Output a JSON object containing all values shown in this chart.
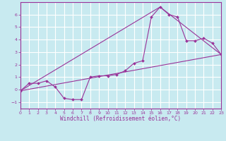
{
  "background_color": "#c8eaf0",
  "grid_color": "#ffffff",
  "line_color": "#993399",
  "marker_color": "#993399",
  "xlabel": "Windchill (Refroidissement éolien,°C)",
  "xlim": [
    0,
    23
  ],
  "ylim": [
    -1.5,
    7
  ],
  "yticks": [
    -1,
    0,
    1,
    2,
    3,
    4,
    5,
    6
  ],
  "xticks": [
    0,
    1,
    2,
    3,
    4,
    5,
    6,
    7,
    8,
    9,
    10,
    11,
    12,
    13,
    14,
    15,
    16,
    17,
    18,
    19,
    20,
    21,
    22,
    23
  ],
  "series": [
    [
      0,
      -0.1
    ],
    [
      1,
      0.5
    ],
    [
      2,
      0.5
    ],
    [
      3,
      0.7
    ],
    [
      4,
      0.2
    ],
    [
      5,
      -0.7
    ],
    [
      6,
      -0.8
    ],
    [
      7,
      -0.8
    ],
    [
      8,
      1.0
    ],
    [
      9,
      1.1
    ],
    [
      10,
      1.1
    ],
    [
      11,
      1.2
    ],
    [
      12,
      1.5
    ],
    [
      13,
      2.1
    ],
    [
      14,
      2.3
    ],
    [
      15,
      5.8
    ],
    [
      16,
      6.6
    ],
    [
      17,
      6.0
    ],
    [
      18,
      5.8
    ],
    [
      19,
      3.9
    ],
    [
      20,
      3.9
    ],
    [
      21,
      4.1
    ],
    [
      22,
      3.7
    ],
    [
      23,
      2.8
    ]
  ],
  "line2": [
    [
      0,
      -0.1
    ],
    [
      23,
      2.8
    ]
  ],
  "line3": [
    [
      0,
      -0.1
    ],
    [
      16,
      6.6
    ],
    [
      23,
      2.8
    ]
  ],
  "font_size_tick": 4.5,
  "font_size_xlabel": 5.5
}
